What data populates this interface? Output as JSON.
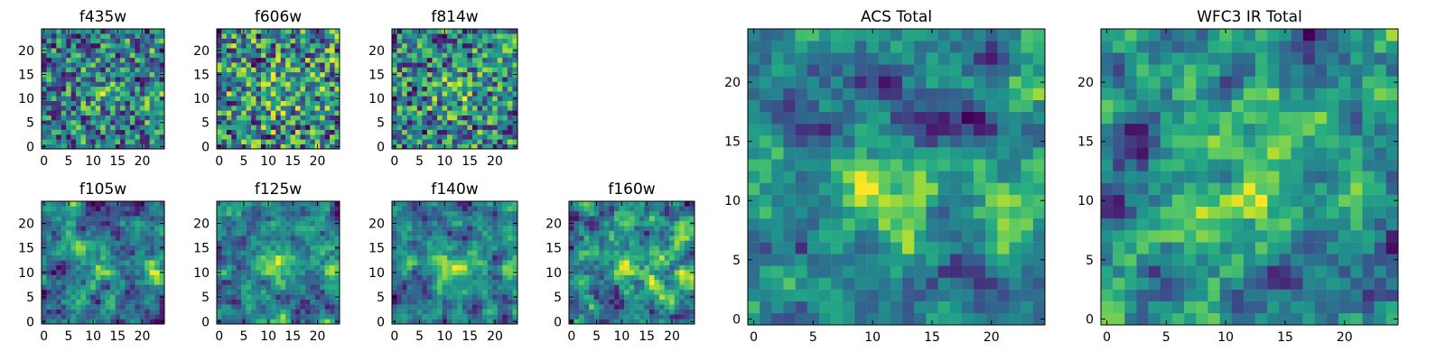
{
  "figure": {
    "background": "#ffffff"
  },
  "chart_data": [
    {
      "type": "heatmap",
      "title": "f435w",
      "xlim": [
        -0.5,
        24.5
      ],
      "ylim": [
        -0.5,
        24.5
      ],
      "xticks": [
        0,
        5,
        10,
        15,
        20
      ],
      "yticks": [
        0,
        5,
        10,
        15,
        20
      ],
      "colormap": "viridis",
      "grid": false,
      "seed": 11
    },
    {
      "type": "heatmap",
      "title": "f606w",
      "xlim": [
        -0.5,
        24.5
      ],
      "ylim": [
        -0.5,
        24.5
      ],
      "xticks": [
        0,
        5,
        10,
        15,
        20
      ],
      "yticks": [
        0,
        5,
        10,
        15,
        20
      ],
      "colormap": "viridis",
      "grid": false,
      "seed": 23
    },
    {
      "type": "heatmap",
      "title": "f814w",
      "xlim": [
        -0.5,
        24.5
      ],
      "ylim": [
        -0.5,
        24.5
      ],
      "xticks": [
        0,
        5,
        10,
        15,
        20
      ],
      "yticks": [
        0,
        5,
        10,
        15,
        20
      ],
      "colormap": "viridis",
      "grid": false,
      "seed": 37
    },
    {
      "type": "heatmap",
      "title": "f105w",
      "xlim": [
        -0.5,
        24.5
      ],
      "ylim": [
        -0.5,
        24.5
      ],
      "xticks": [
        0,
        5,
        10,
        15,
        20
      ],
      "yticks": [
        0,
        5,
        10,
        15,
        20
      ],
      "colormap": "viridis",
      "grid": false,
      "seed": 41
    },
    {
      "type": "heatmap",
      "title": "f125w",
      "xlim": [
        -0.5,
        24.5
      ],
      "ylim": [
        -0.5,
        24.5
      ],
      "xticks": [
        0,
        5,
        10,
        15,
        20
      ],
      "yticks": [
        0,
        5,
        10,
        15,
        20
      ],
      "colormap": "viridis",
      "grid": false,
      "seed": 53
    },
    {
      "type": "heatmap",
      "title": "f140w",
      "xlim": [
        -0.5,
        24.5
      ],
      "ylim": [
        -0.5,
        24.5
      ],
      "xticks": [
        0,
        5,
        10,
        15,
        20
      ],
      "yticks": [
        0,
        5,
        10,
        15,
        20
      ],
      "colormap": "viridis",
      "grid": false,
      "seed": 67
    },
    {
      "type": "heatmap",
      "title": "f160w",
      "xlim": [
        -0.5,
        24.5
      ],
      "ylim": [
        -0.5,
        24.5
      ],
      "xticks": [
        0,
        5,
        10,
        15,
        20
      ],
      "yticks": [
        0,
        5,
        10,
        15,
        20
      ],
      "colormap": "viridis",
      "grid": false,
      "seed": 79
    },
    {
      "type": "heatmap",
      "title": "ACS Total",
      "xlim": [
        -0.5,
        24.5
      ],
      "ylim": [
        -0.5,
        24.5
      ],
      "xticks": [
        0,
        5,
        10,
        15,
        20
      ],
      "yticks": [
        0,
        5,
        10,
        15,
        20
      ],
      "colormap": "viridis",
      "grid": false,
      "seed": 97
    },
    {
      "type": "heatmap",
      "title": "WFC3 IR Total",
      "xlim": [
        -0.5,
        24.5
      ],
      "ylim": [
        -0.5,
        24.5
      ],
      "xticks": [
        0,
        5,
        10,
        15,
        20
      ],
      "yticks": [
        0,
        5,
        10,
        15,
        20
      ],
      "colormap": "viridis",
      "grid": false,
      "seed": 113
    }
  ]
}
